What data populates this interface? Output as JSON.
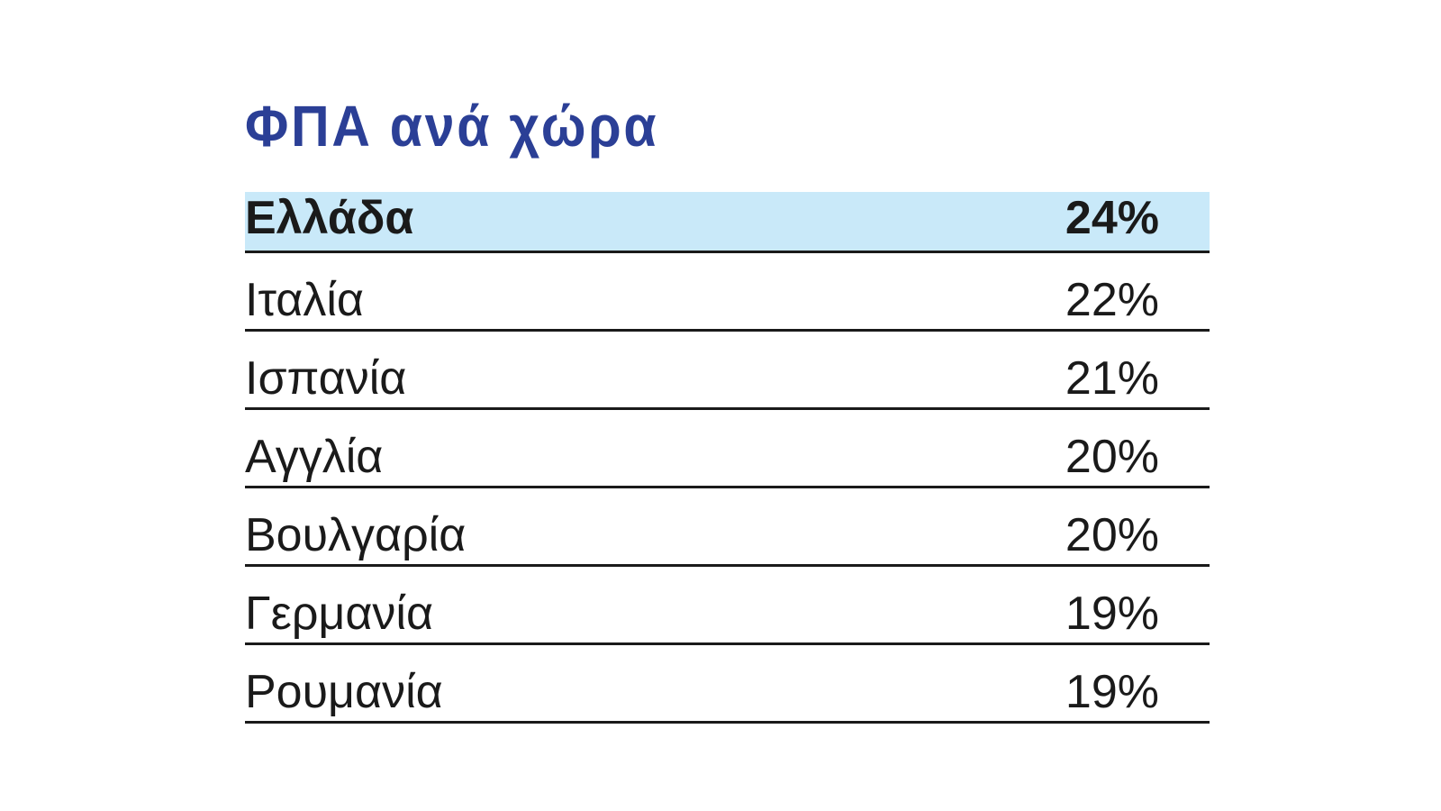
{
  "title": "ΦΠΑ ανά χώρα",
  "table": {
    "rows": [
      [
        "Ελλάδα",
        "24%"
      ],
      [
        "Ιταλία",
        "22%"
      ],
      [
        "Ισπανία",
        "21%"
      ],
      [
        "Αγγλία",
        "20%"
      ],
      [
        "Βουλγαρία",
        "20%"
      ],
      [
        "Γερμανία",
        "19%"
      ],
      [
        "Ρουμανία",
        "19%"
      ]
    ]
  }
}
